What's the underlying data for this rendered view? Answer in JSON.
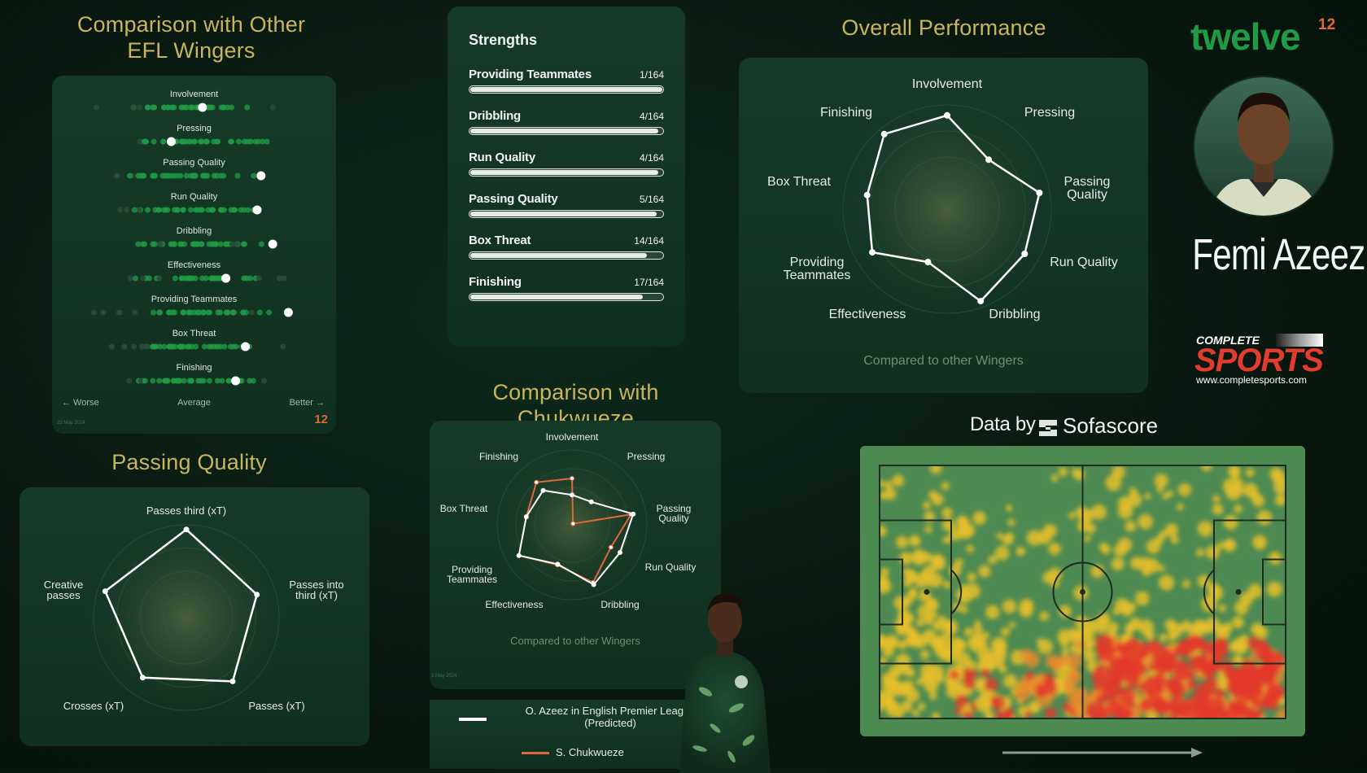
{
  "headings": {
    "efl": "Comparison with Other EFL Wingers",
    "efl_line1": "Comparison with Other",
    "efl_line2": "EFL Wingers",
    "overall": "Overall Performance",
    "chukwueze": "Comparison with Chukwueze",
    "passing": "Passing Quality"
  },
  "brand": {
    "logo_text": "twelve",
    "logo_sup": "12",
    "player_name": "Femi Azeez",
    "sponsor_top": "COMPLETE",
    "sponsor_main": "SPORTS",
    "sponsor_url": "www.completesports.com",
    "data_by": "Data by",
    "data_source": "Sofascore",
    "mini_logo": "12"
  },
  "efl_panel": {
    "footer_left": "← Worse",
    "footer_mid": "Average",
    "footer_right": "Better →",
    "date": "23 May 2024"
  },
  "strengths": {
    "title": "Strengths",
    "items": [
      {
        "name": "Providing Teammates",
        "rank": "1/164",
        "fraction": 1.0
      },
      {
        "name": "Dribbling",
        "rank": "4/164",
        "fraction": 0.98
      },
      {
        "name": "Run Quality",
        "rank": "4/164",
        "fraction": 0.98
      },
      {
        "name": "Passing Quality",
        "rank": "5/164",
        "fraction": 0.97
      },
      {
        "name": "Box Threat",
        "rank": "14/164",
        "fraction": 0.92
      },
      {
        "name": "Finishing",
        "rank": "17/164",
        "fraction": 0.9
      }
    ]
  },
  "overall": {
    "caption": "Compared to other Wingers"
  },
  "chuk": {
    "caption": "Compared to other Wingers",
    "date": "2 May 2024",
    "legend_white": "O. Azeez in English Premier League (Predicted)",
    "legend_white_1": "O. Azeez in English Premier League",
    "legend_white_2": "(Predicted)",
    "legend_orange": "S. Chukwueze"
  },
  "colors": {
    "heading": "#c9b55a",
    "accent_green": "#1f9a45",
    "orange": "#e0683a",
    "red_logo": "#e23c2e",
    "pitch": "#4a8a4e"
  },
  "chart_data": [
    {
      "type": "scatter",
      "id": "efl_strip",
      "categories": [
        "Involvement",
        "Pressing",
        "Passing Quality",
        "Run Quality",
        "Dribbling",
        "Effectiveness",
        "Providing Teammates",
        "Box Threat",
        "Finishing"
      ],
      "player_percentile": [
        0.52,
        0.36,
        0.82,
        0.8,
        0.88,
        0.64,
        0.96,
        0.74,
        0.69
      ],
      "xlabel_left": "← Worse",
      "xlabel_mid": "Average",
      "xlabel_right": "Better →"
    },
    {
      "type": "radar",
      "id": "overall",
      "axes": [
        "Involvement",
        "Pressing",
        "Passing Quality",
        "Run Quality",
        "Dribbling",
        "Effectiveness",
        "Providing Teammates",
        "Box Threat",
        "Finishing"
      ],
      "values": [
        0.9,
        0.62,
        0.9,
        0.86,
        0.94,
        0.54,
        0.83,
        0.78,
        0.94
      ]
    },
    {
      "type": "radar",
      "id": "chukwueze",
      "axes": [
        "Involvement",
        "Pressing",
        "Passing Quality",
        "Run Quality",
        "Dribbling",
        "Effectiveness",
        "Providing Teammates",
        "Box Threat",
        "Finishing"
      ],
      "series": [
        {
          "name": "O. Azeez in English Premier League (Predicted)",
          "values": [
            0.4,
            0.4,
            0.83,
            0.74,
            0.85,
            0.56,
            0.82,
            0.62,
            0.6
          ]
        },
        {
          "name": "S. Chukwueze",
          "values": [
            0.62,
            0.0,
            0.8,
            0.6,
            0.82,
            0.57,
            0.82,
            0.62,
            0.74
          ]
        }
      ]
    },
    {
      "type": "radar",
      "id": "passing_quality",
      "axes": [
        "Passes third (xT)",
        "Passes into third (xT)",
        "Passes (xT)",
        "Crosses (xT)",
        "Creative passes"
      ],
      "values": [
        0.95,
        0.8,
        0.85,
        0.8,
        0.92
      ]
    }
  ]
}
